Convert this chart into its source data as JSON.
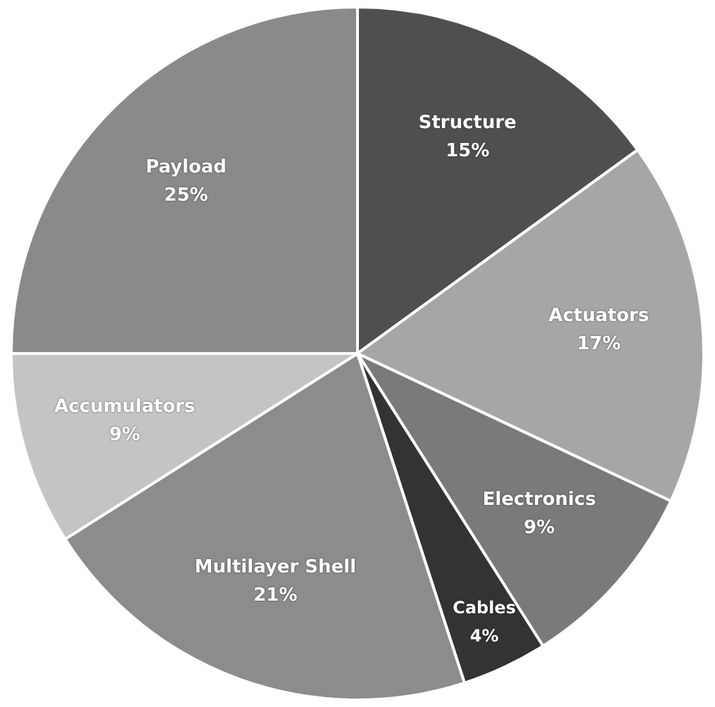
{
  "chart_data": {
    "type": "pie",
    "categories": [
      "Structure",
      "Actuators",
      "Electronics",
      "Cables",
      "Multilayer Shell",
      "Accumulators",
      "Payload"
    ],
    "values": [
      15,
      17,
      9,
      4,
      21,
      9,
      25
    ],
    "value_labels": [
      "15%",
      "17%",
      "9%",
      "4%",
      "21%",
      "9%",
      "25%"
    ],
    "colors": [
      "#4f4f4f",
      "#a6a6a6",
      "#7a7a7a",
      "#333333",
      "#8c8c8c",
      "#c4c4c4",
      "#8a8a8a"
    ],
    "legend": false
  }
}
